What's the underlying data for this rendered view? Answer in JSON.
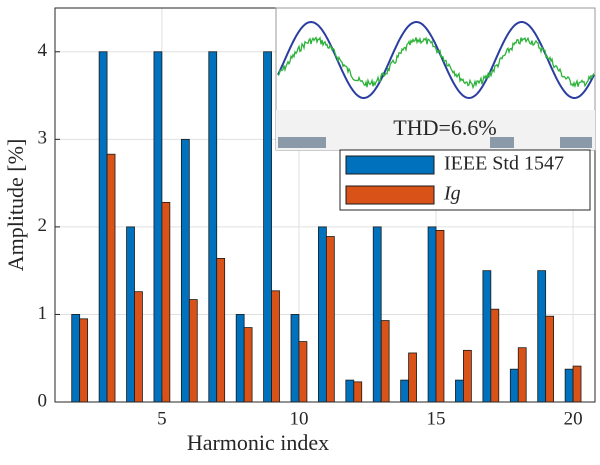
{
  "chart_data": {
    "type": "bar",
    "xlabel": "Harmonic index",
    "ylabel": "Amplitude [%]",
    "annotation": "THD=6.6%",
    "categories": [
      2,
      3,
      4,
      5,
      6,
      7,
      8,
      9,
      10,
      11,
      12,
      13,
      14,
      15,
      16,
      17,
      18,
      19,
      20
    ],
    "series": [
      {
        "name": "IEEE Std 1547",
        "color": "#0072bd",
        "values": [
          1,
          4,
          2,
          4,
          3,
          4,
          1,
          4,
          1,
          2,
          0.25,
          2,
          0.25,
          2,
          0.25,
          1.5,
          0.375,
          1.5,
          0.375
        ]
      },
      {
        "name": "Ig",
        "color": "#d95319",
        "values": [
          0.95,
          2.83,
          1.26,
          2.28,
          1.17,
          1.64,
          0.85,
          1.27,
          0.69,
          1.89,
          0.23,
          0.93,
          0.56,
          1.96,
          0.59,
          1.06,
          0.62,
          0.98,
          0.41
        ]
      }
    ],
    "xlim": [
      1.1,
      20.8
    ],
    "xticks": [
      5,
      10,
      15,
      20
    ],
    "ylim": [
      0,
      4.5
    ],
    "yticks": [
      0,
      1,
      2,
      3,
      4
    ],
    "grid": true
  }
}
